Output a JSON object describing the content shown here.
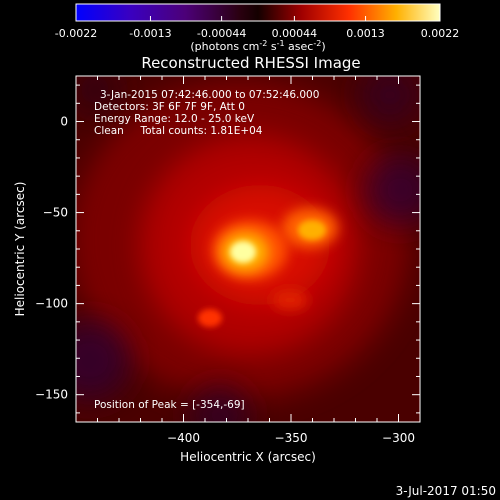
{
  "colorbar": {
    "tick_labels": [
      "-0.0022",
      "-0.0013",
      "-0.00044",
      "0.00044",
      "0.0013",
      "0.0022"
    ],
    "tick_values": [
      -0.0022,
      -0.0013,
      -0.00044,
      0.00044,
      0.0013,
      0.0022
    ],
    "range": [
      -0.0022,
      0.0022
    ],
    "unit_label": "(photons cm",
    "unit_exp1": "-2",
    "unit_mid": " s",
    "unit_exp2": "-1",
    "unit_mid2": " asec",
    "unit_exp3": "-2",
    "unit_close": ")"
  },
  "plot": {
    "title": "Reconstructed RHESSI Image",
    "xlabel": "Heliocentric X (arcsec)",
    "ylabel": "Heliocentric Y (arcsec)",
    "x_range": [
      -450,
      -290
    ],
    "y_range": [
      -165,
      25
    ],
    "x_ticks": [
      -400,
      -350,
      -300
    ],
    "x_tick_labels": [
      "−400",
      "−350",
      "−300"
    ],
    "y_ticks": [
      0,
      -50,
      -100,
      -150
    ],
    "y_tick_labels": [
      "0",
      "−50",
      "−100",
      "−150"
    ],
    "annotations": {
      "time_range": "3-Jan-2015 07:42:46.000 to 07:52:46.000",
      "detectors": "Detectors: 3F 6F 7F 9F, Att 0",
      "energy": "Energy Range: 12.0 - 25.0 keV",
      "clean": "Clean     Total counts: 1.81E+04",
      "peak": "Position of Peak = [-354,-69]"
    },
    "peak_position": [
      -354,
      -69
    ]
  },
  "footer": {
    "date": "3-Jul-2017 01:50"
  },
  "colors": {
    "background": "#000000",
    "text": "#ffffff"
  }
}
